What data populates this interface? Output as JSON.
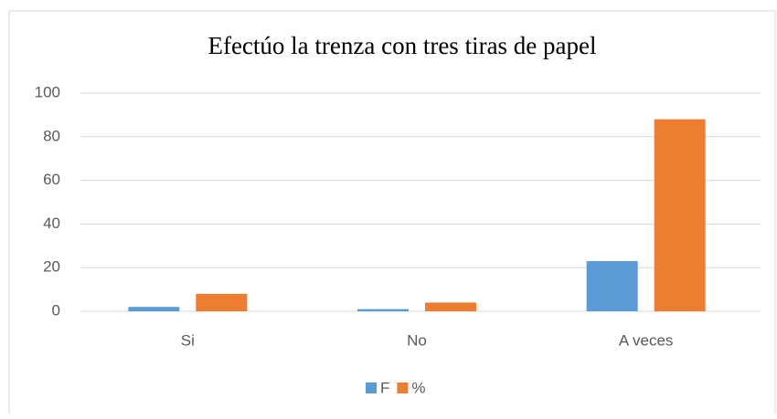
{
  "chart_data": {
    "type": "bar",
    "title": "Efectúo la trenza con tres tiras de papel",
    "categories": [
      "Si",
      "No",
      "A veces"
    ],
    "series": [
      {
        "name": "F",
        "color": "#5b9bd5",
        "values": [
          2,
          1,
          23
        ]
      },
      {
        "name": "%",
        "color": "#ed7d31",
        "values": [
          8,
          4,
          88
        ]
      }
    ],
    "ylim": [
      0,
      100
    ],
    "yticks": [
      0,
      20,
      40,
      60,
      80,
      100
    ],
    "grid": true,
    "legend": "bottom"
  }
}
